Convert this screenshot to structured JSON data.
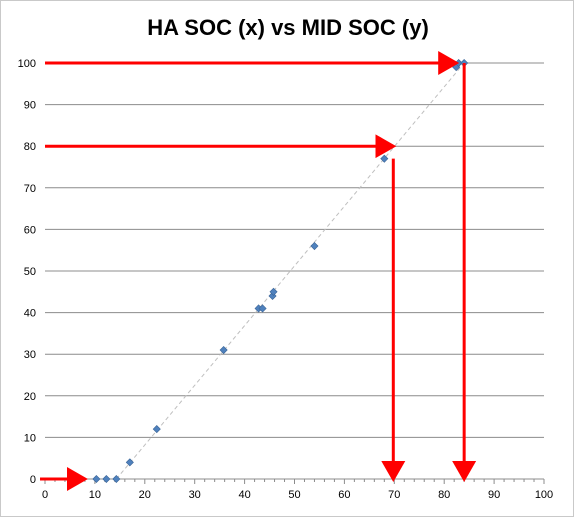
{
  "chart_data": {
    "type": "scatter",
    "title": "HA SOC (x) vs MID SOC (y)",
    "xlabel": "",
    "ylabel": "",
    "xlim": [
      0,
      100
    ],
    "ylim": [
      0,
      100
    ],
    "x_ticks": [
      "0",
      "10",
      "20",
      "30",
      "40",
      "50",
      "60",
      "70",
      "80",
      "90",
      "100"
    ],
    "y_ticks": [
      "0",
      "10",
      "20",
      "30",
      "40",
      "50",
      "60",
      "70",
      "80",
      "90",
      "100"
    ],
    "grid": "horizontal",
    "legend": "none",
    "series": [
      {
        "points": [
          {
            "x": 10.3,
            "y": 0
          },
          {
            "x": 12.3,
            "y": 0
          },
          {
            "x": 14.3,
            "y": 0
          },
          {
            "x": 17.0,
            "y": 4
          },
          {
            "x": 22.4,
            "y": 12
          },
          {
            "x": 35.8,
            "y": 31
          },
          {
            "x": 42.8,
            "y": 41
          },
          {
            "x": 43.6,
            "y": 41
          },
          {
            "x": 45.6,
            "y": 44
          },
          {
            "x": 45.8,
            "y": 45
          },
          {
            "x": 54.0,
            "y": 56
          },
          {
            "x": 68.0,
            "y": 77
          },
          {
            "x": 82.4,
            "y": 99
          },
          {
            "x": 82.9,
            "y": 100
          },
          {
            "x": 84.0,
            "y": 100
          }
        ]
      }
    ],
    "trendline": {
      "x_start": 14.3,
      "y_start": 0,
      "x_end": 84.0,
      "y_end": 100
    },
    "annotations": [
      {
        "type": "arrow",
        "from": {
          "x": 0,
          "y": 100
        },
        "to": {
          "x": 82.4,
          "y": 100
        }
      },
      {
        "type": "arrow",
        "from": {
          "x": 84.0,
          "y": 100
        },
        "to": {
          "x": 84.0,
          "y": 0
        }
      },
      {
        "type": "arrow",
        "from": {
          "x": 0,
          "y": 80
        },
        "to": {
          "x": 69.8,
          "y": 80
        }
      },
      {
        "type": "arrow",
        "from": {
          "x": 69.8,
          "y": 77
        },
        "to": {
          "x": 69.8,
          "y": 0
        }
      },
      {
        "type": "arrow",
        "from": {
          "x": -1,
          "y": 0
        },
        "to": {
          "x": 8,
          "y": 0
        }
      }
    ],
    "colors": {
      "marker": "#4f81bd",
      "marker_edge": "#3a6496",
      "trendline": "#bfbfbf",
      "gridline": "#8c8c8c",
      "axis": "#8c8c8c",
      "arrow": "#ff0000"
    }
  }
}
